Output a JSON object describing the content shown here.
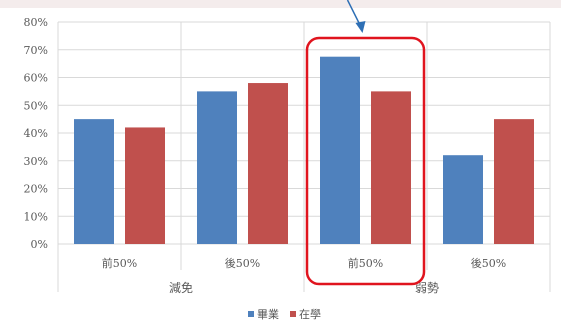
{
  "chart_data": {
    "type": "bar",
    "groups": [
      "減免",
      "弱勢"
    ],
    "categories": [
      "前50%",
      "後50%",
      "前50%",
      "後50%"
    ],
    "category_group": [
      0,
      0,
      1,
      1
    ],
    "series": [
      {
        "name": "畢業",
        "color": "#4f81bd",
        "values": [
          45,
          55,
          67.5,
          32
        ]
      },
      {
        "name": "在學",
        "color": "#c0504d",
        "values": [
          42,
          58,
          55,
          45
        ]
      }
    ],
    "y_ticks": [
      "0%",
      "10%",
      "20%",
      "30%",
      "40%",
      "50%",
      "60%",
      "70%",
      "80%"
    ],
    "ylim": [
      0,
      80
    ],
    "grid": true,
    "legend_position": "bottom",
    "highlight": {
      "category_index": 2,
      "color": "#e0141e"
    },
    "arrow_color": "#2e6fb5"
  }
}
